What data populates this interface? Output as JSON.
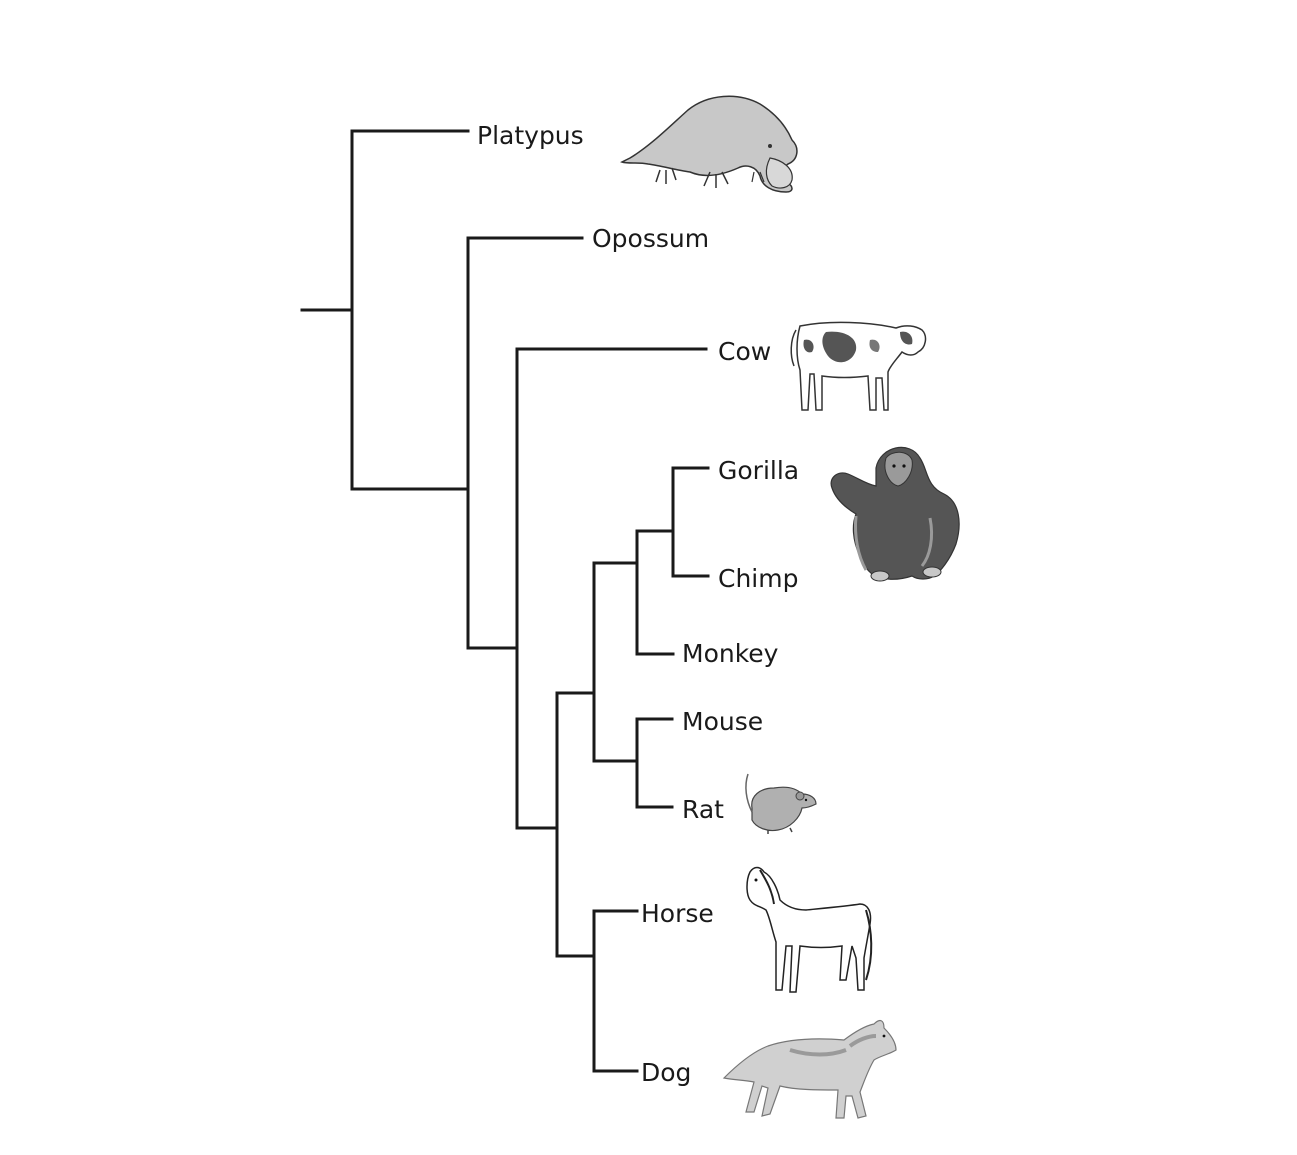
{
  "diagram": {
    "type": "phylogenetic-tree",
    "taxa": [
      "Platypus",
      "Opossum",
      "Cow",
      "Gorilla",
      "Chimp",
      "Monkey",
      "Mouse",
      "Rat",
      "Horse",
      "Dog"
    ],
    "colors": {
      "line": "#1a1a1a",
      "text": "#1a1a1a",
      "illustration_dark": "#555555",
      "illustration_mid": "#9a9a9a",
      "illustration_light": "#c8c8c8"
    },
    "illustrations": [
      "platypus",
      "cow",
      "chimpanzee",
      "rat",
      "horse",
      "dog"
    ]
  }
}
